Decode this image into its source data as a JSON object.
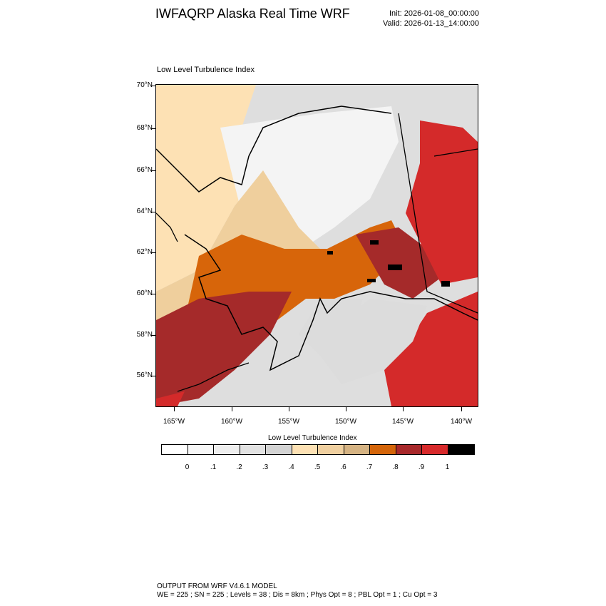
{
  "header": {
    "title": "IWFAQRP Alaska Real Time WRF",
    "init": "Init: 2026-01-08_00:00:00",
    "valid": "Valid: 2026-01-13_14:00:00"
  },
  "panel": {
    "title": "Low Level Turbulence Index"
  },
  "map": {
    "lat_labels": [
      "70°N",
      "68°N",
      "66°N",
      "64°N",
      "62°N",
      "60°N",
      "58°N",
      "56°N"
    ],
    "lon_labels": [
      "165°W",
      "160°W",
      "155°W",
      "150°W",
      "145°W",
      "140°W"
    ],
    "colors": {
      "land_outline": "#000000",
      "low_gray": "#dcdcdc",
      "light_gray": "#ececec",
      "pale_tan": "#fde1b4",
      "tan": "#efcf9d",
      "brown_tan": "#d6b584",
      "orange": "#d7650a",
      "dark_red": "#a52a2a",
      "red": "#d42a2a",
      "black": "#000000"
    }
  },
  "colorbar": {
    "title": "Low Level Turbulence Index",
    "colors": [
      "#ffffff",
      "#f7f7f7",
      "#eeeeee",
      "#e2e2e2",
      "#d3d3d3",
      "#fde1b4",
      "#f0d0a0",
      "#d5b383",
      "#d4650a",
      "#a8292b",
      "#d72a2b",
      "#000000"
    ],
    "labels": [
      "0",
      ".1",
      ".2",
      ".3",
      ".4",
      ".5",
      ".6",
      ".7",
      ".8",
      ".9",
      "1"
    ]
  },
  "footer": {
    "line1": "OUTPUT FROM WRF V4.6.1 MODEL",
    "line2": "WE = 225 ; SN = 225 ; Levels = 38 ; Dis = 8km ; Phys Opt = 8 ; PBL Opt = 1 ; Cu Opt = 3"
  }
}
